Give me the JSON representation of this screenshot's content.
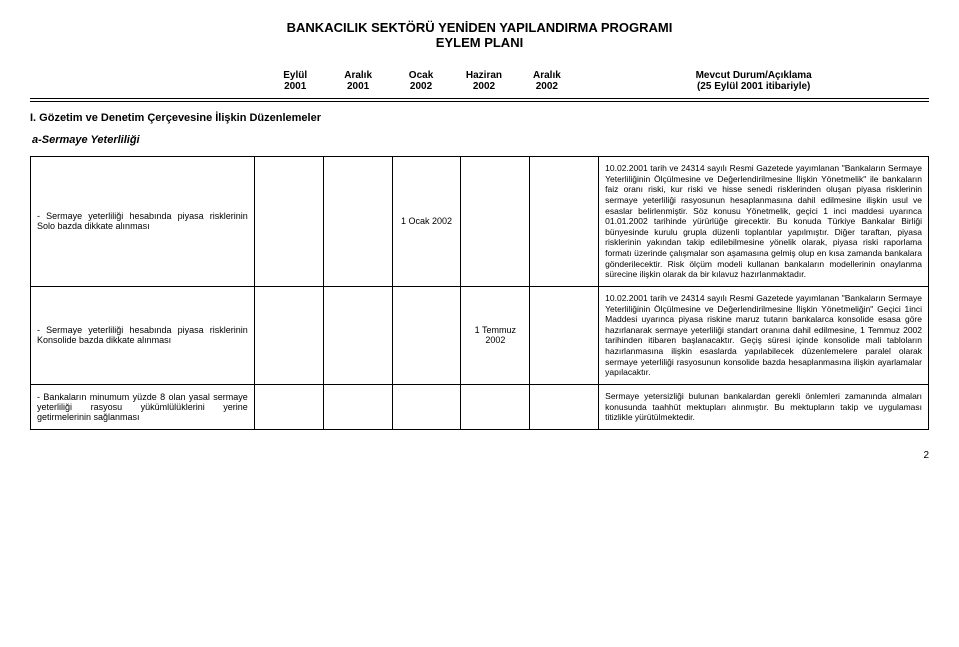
{
  "title": {
    "line1": "BANKACILIK SEKTÖRÜ YENİDEN YAPILANDIRMA PROGRAMI",
    "line2": "EYLEM PLANI"
  },
  "headers": {
    "col1_top": "Eylül",
    "col1_bot": "2001",
    "col2_top": "Aralık",
    "col2_bot": "2001",
    "col3_top": "Ocak",
    "col3_bot": "2002",
    "col4_top": "Haziran",
    "col4_bot": "2002",
    "col5_top": "Aralık",
    "col5_bot": "2002",
    "status_top": "Mevcut Durum/Açıklama",
    "status_bot": "(25 Eylül 2001 itibariyle)"
  },
  "section_title": "I. Gözetim ve Denetim Çerçevesine İlişkin Düzenlemeler",
  "sub_heading": "a-Sermaye Yeterliliği",
  "rows": [
    {
      "desc": "-  Sermaye  yeterliliği  hesabında  piyasa  risklerinin Solo bazda dikkate alınması",
      "c1": "",
      "c2": "",
      "c3": "1 Ocak 2002",
      "c4": "",
      "c5": "",
      "status": "10.02.2001 tarih ve 24314 sayılı Resmi Gazetede yayımlanan \"Bankaların Sermaye Yeterliliğinin Ölçülmesine ve Değerlendirilmesine İlişkin Yönetmelik\" ile bankaların faiz oranı riski, kur riski ve hisse senedi risklerinden oluşan piyasa risklerinin sermaye yeterliliği rasyosunun hesaplanmasına dahil edilmesine ilişkin usul ve esaslar belirlenmiştir. Söz konusu Yönetmelik, geçici 1 inci maddesi uyarınca 01.01.2002 tarihinde yürürlüğe girecektir. Bu konuda Türkiye Bankalar Birliği bünyesinde kurulu grupla düzenli toplantılar yapılmıştır. Diğer taraftan, piyasa risklerinin yakından  takip edilebilmesine yönelik olarak, piyasa riski raporlama formatı üzerinde çalışmalar son aşamasına gelmiş olup en kısa zamanda bankalara gönderilecektir.  Risk ölçüm modeli kullanan bankaların modellerinin onaylanma sürecine ilişkin olarak da bir kılavuz hazırlanmaktadır."
    },
    {
      "desc": "-  Sermaye  yeterliliği  hesabında  piyasa  risklerinin Konsolide bazda dikkate alınması",
      "c1": "",
      "c2": "",
      "c3": "",
      "c4": "1 Temmuz 2002",
      "c5": "",
      "status": "10.02.2001 tarih ve 24314 sayılı Resmi Gazetede yayımlanan \"Bankaların Sermaye Yeterliliğinin Ölçülmesine ve Değerlendirilmesine İlişkin Yönetmeliğin\" Geçici 1inci Maddesi uyarınca piyasa riskine maruz tutarın bankalarca konsolide esasa göre hazırlanarak sermaye yeterliliği standart oranına dahil edilmesine, 1 Temmuz 2002 tarihinden itibaren başlanacaktır. Geçiş süresi içinde konsolide mali tabloların hazırlanmasına ilişkin esaslarda yapılabilecek düzenlemelere paralel olarak sermaye yeterliliği rasyosunun konsolide bazda hesaplanmasına ilişkin ayarlamalar yapılacaktır."
    },
    {
      "desc": "- Bankaların minumum yüzde 8 olan yasal sermaye yeterliliği rasyosu yükümlülüklerini yerine getirmelerinin sağlanması",
      "c1": "",
      "c2": "",
      "c3": "",
      "c4": "",
      "c5": "",
      "status": "Sermaye yetersizliği bulunan bankalardan gerekli önlemleri zamanında almaları konusunda taahhüt mektupları alınmıştır. Bu mektupların takip ve uygulaması titizlikle yürütülmektedir."
    }
  ],
  "page_number": "2"
}
